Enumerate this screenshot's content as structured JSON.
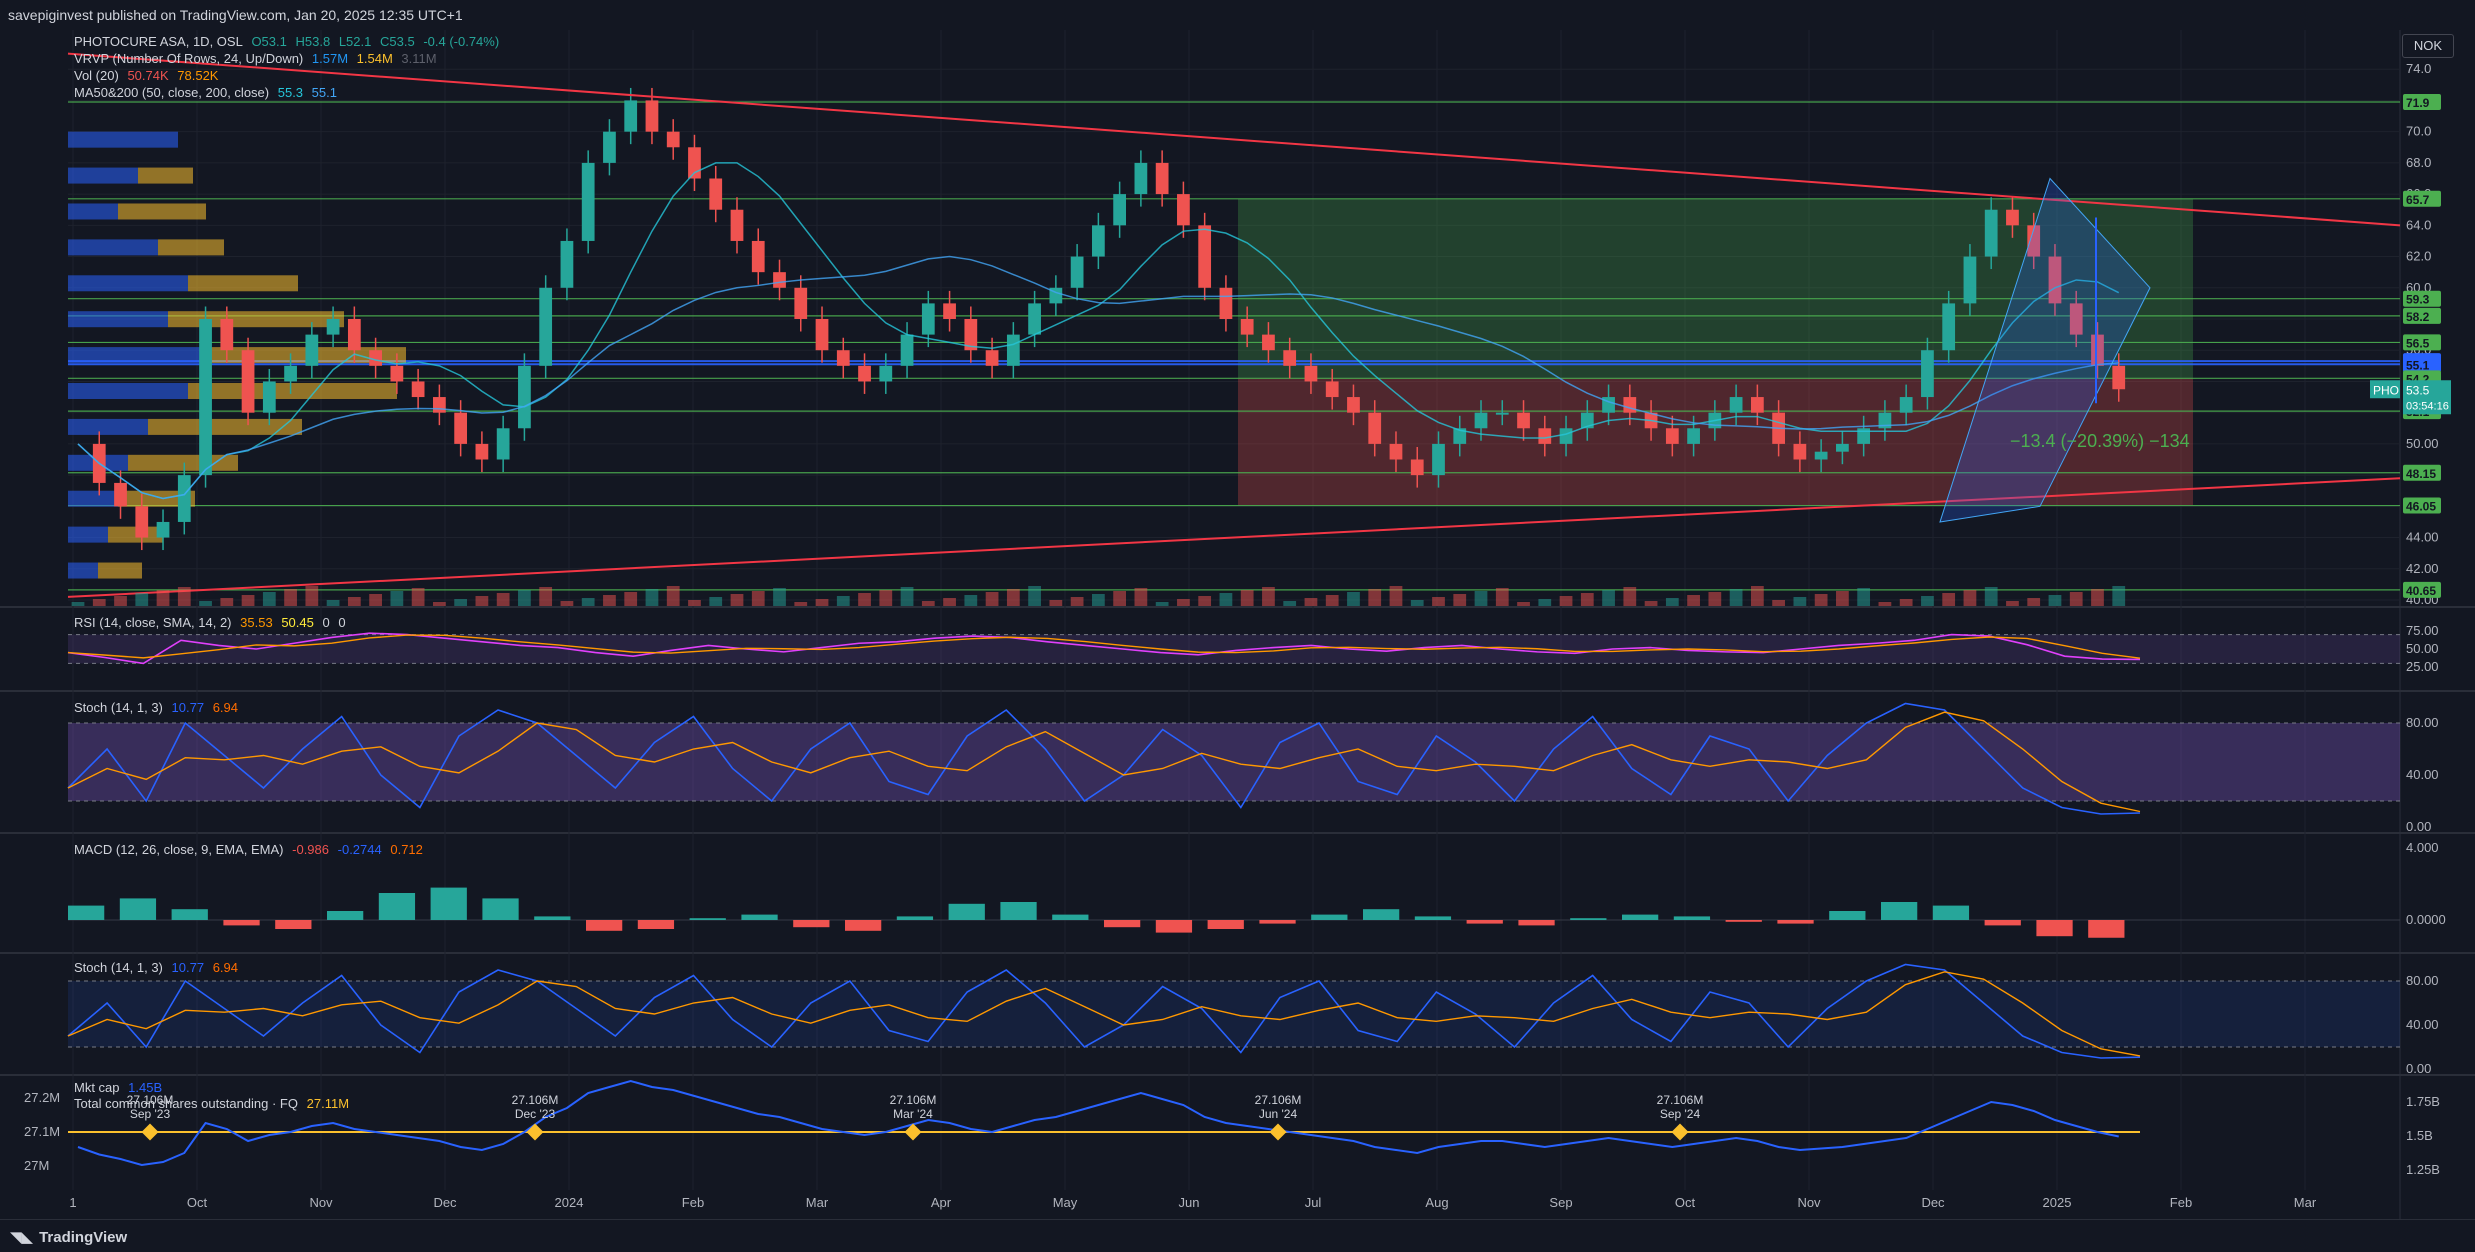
{
  "header": {
    "publisher_line": "savepiginvest published on TradingView.com, Jan 20, 2025 12:35 UTC+1"
  },
  "currency_button": "NOK",
  "footer": {
    "brand": "TradingView"
  },
  "legends": {
    "main": {
      "symbol": "PHOTOCURE ASA, 1D, OSL",
      "open": "O53.1",
      "high": "H53.8",
      "low": "L52.1",
      "close": "C53.5",
      "change": "-0.4 (-0.74%)"
    },
    "vrvp": {
      "label": "VRVP (Number Of Rows, 24, Up/Down)",
      "v1": "1.57M",
      "v2": "1.54M",
      "v3": "3.11M"
    },
    "vol": {
      "label": "Vol (20)",
      "v1": "50.74K",
      "v2": "78.52K"
    },
    "ma": {
      "label": "MA50&200 (50, close, 200, close)",
      "v1": "55.3",
      "v2": "55.1"
    },
    "rsi": {
      "label": "RSI (14, close, SMA, 14, 2)",
      "v1": "35.53",
      "v2": "50.45",
      "v3": "0",
      "v4": "0"
    },
    "stoch1": {
      "label": "Stoch (14, 1, 3)",
      "k": "10.77",
      "d": "6.94"
    },
    "macd": {
      "label": "MACD (12, 26, close, 9, EMA, EMA)",
      "hist": "-0.986",
      "macd": "-0.2744",
      "signal": "0.712"
    },
    "stoch2": {
      "label": "Stoch (14, 1, 3)",
      "k": "10.77",
      "d": "6.94"
    },
    "mktcap": {
      "label": "Mkt cap",
      "value": "1.45B",
      "shares_label": "Total common shares outstanding · FQ",
      "shares_value": "27.11M"
    }
  },
  "colors": {
    "bg": "#131722",
    "up": "#26a69a",
    "down": "#ef5350",
    "blue": "#2962ff",
    "orange": "#ff9800",
    "green_line": "#4caf50",
    "red_line": "#f23645",
    "purple": "#7e57c2"
  },
  "chart_data": {
    "type": "line",
    "xlabels": [
      "1",
      "Oct",
      "Nov",
      "Dec",
      "2024",
      "Feb",
      "Mar",
      "Apr",
      "May",
      "Jun",
      "Jul",
      "Aug",
      "Sep",
      "Oct",
      "Nov",
      "Dec",
      "2025",
      "Feb",
      "Mar"
    ],
    "price_axis": {
      "ylim": [
        40.0,
        76.0
      ],
      "ticks": [
        "74.0",
        "72.0",
        "70.0",
        "68.0",
        "66.0",
        "64.0",
        "62.0",
        "60.0",
        "58.0",
        "56.0",
        "54.0",
        "52.0",
        "50.00",
        "48.00",
        "46.00",
        "44.00",
        "42.00",
        "40.00"
      ]
    },
    "level_labels": [
      {
        "value": 71.9,
        "text": "71.9",
        "color": "#4caf50"
      },
      {
        "value": 65.7,
        "text": "65.7",
        "color": "#4caf50"
      },
      {
        "value": 59.3,
        "text": "59.3",
        "color": "#4caf50"
      },
      {
        "value": 58.2,
        "text": "58.2",
        "color": "#4caf50"
      },
      {
        "value": 56.5,
        "text": "56.5",
        "color": "#4caf50"
      },
      {
        "value": 55.3,
        "text": "55.3",
        "color": "#2962ff"
      },
      {
        "value": 55.1,
        "text": "55.1",
        "color": "#2962ff"
      },
      {
        "value": 54.2,
        "text": "54.2",
        "color": "#4caf50"
      },
      {
        "value": 52.1,
        "text": "52.1",
        "color": "#4caf50"
      },
      {
        "value": 48.15,
        "text": "48.15",
        "color": "#4caf50"
      },
      {
        "value": 46.05,
        "text": "46.05",
        "color": "#4caf50"
      },
      {
        "value": 40.65,
        "text": "40.65",
        "color": "#4caf50"
      }
    ],
    "last_price": {
      "symbol": "PHO",
      "price": "53.5",
      "countdown": "03:54:16",
      "value": 53.5
    },
    "measure_label": "−13.4 (−20.39%) −134",
    "close_series": [
      50,
      47.5,
      46,
      44,
      45,
      48,
      58,
      56,
      52,
      54,
      55,
      57,
      58,
      56,
      55,
      54,
      53,
      52,
      50,
      49,
      51,
      55,
      60,
      63,
      68,
      70,
      72,
      70,
      69,
      67,
      65,
      63,
      61,
      60,
      58,
      56,
      55,
      54,
      55,
      57,
      59,
      58,
      56,
      55,
      57,
      59,
      60,
      62,
      64,
      66,
      68,
      66,
      64,
      60,
      58,
      57,
      56,
      55,
      54,
      53,
      52,
      50,
      49,
      48,
      50,
      51,
      52,
      52,
      51,
      50,
      51,
      52,
      53,
      52,
      51,
      50,
      51,
      52,
      53,
      52,
      50,
      49,
      49.5,
      50,
      51,
      52,
      53,
      56,
      59,
      62,
      65,
      64,
      62,
      59,
      57,
      55,
      53.5
    ],
    "rsi": {
      "ylim": [
        0,
        100
      ],
      "ticks": [
        "75.00",
        "50.00",
        "25.00"
      ],
      "band": [
        30,
        70
      ],
      "values": [
        45,
        38,
        30,
        62,
        55,
        50,
        58,
        66,
        72,
        70,
        65,
        60,
        55,
        52,
        45,
        40,
        48,
        55,
        50,
        46,
        52,
        58,
        60,
        65,
        68,
        66,
        60,
        55,
        50,
        45,
        42,
        48,
        52,
        55,
        50,
        47,
        52,
        55,
        50,
        46,
        44,
        50,
        52,
        48,
        46,
        45,
        50,
        55,
        58,
        62,
        70,
        68,
        56,
        40,
        36,
        35.5
      ]
    },
    "stoch1": {
      "ylim": [
        0,
        100
      ],
      "ticks": [
        "80.00",
        "40.00",
        "0.00"
      ],
      "band": [
        20,
        80
      ],
      "values": [
        30,
        60,
        20,
        80,
        55,
        30,
        60,
        85,
        40,
        15,
        70,
        90,
        80,
        55,
        30,
        65,
        85,
        45,
        20,
        60,
        80,
        35,
        25,
        70,
        90,
        60,
        20,
        40,
        75,
        55,
        15,
        65,
        80,
        35,
        25,
        70,
        50,
        20,
        60,
        85,
        45,
        25,
        70,
        60,
        20,
        55,
        80,
        95,
        90,
        60,
        30,
        15,
        10,
        10.77
      ]
    },
    "macd": {
      "ylim": [
        -1.5,
        4.5
      ],
      "ticks": [
        "4.000",
        "0.0000"
      ],
      "hist_values": [
        0.8,
        1.2,
        0.6,
        -0.3,
        -0.5,
        0.5,
        1.5,
        1.8,
        1.2,
        0.2,
        -0.6,
        -0.5,
        0.1,
        0.3,
        -0.4,
        -0.6,
        0.2,
        0.9,
        1.0,
        0.3,
        -0.4,
        -0.7,
        -0.5,
        -0.2,
        0.3,
        0.6,
        0.2,
        -0.2,
        -0.3,
        0.1,
        0.3,
        0.2,
        -0.1,
        -0.2,
        0.5,
        1.0,
        0.8,
        -0.3,
        -0.9,
        -0.986
      ]
    },
    "stoch2": {
      "ylim": [
        0,
        100
      ],
      "ticks": [
        "80.00",
        "40.00",
        "0.00"
      ],
      "band": [
        20,
        80
      ]
    },
    "mktcap": {
      "left_ticks": [
        "27.2M",
        "27.1M",
        "27M"
      ],
      "right_ticks": [
        "1.75B",
        "1.5B",
        "1.25B"
      ],
      "events": [
        {
          "value": "27.106M",
          "date": "Sep '23"
        },
        {
          "value": "27.106M",
          "date": "Dec '23"
        },
        {
          "value": "27.106M",
          "date": "Mar '24"
        },
        {
          "value": "27.106M",
          "date": "Jun '24"
        },
        {
          "value": "27.106M",
          "date": "Sep '24"
        }
      ]
    }
  }
}
